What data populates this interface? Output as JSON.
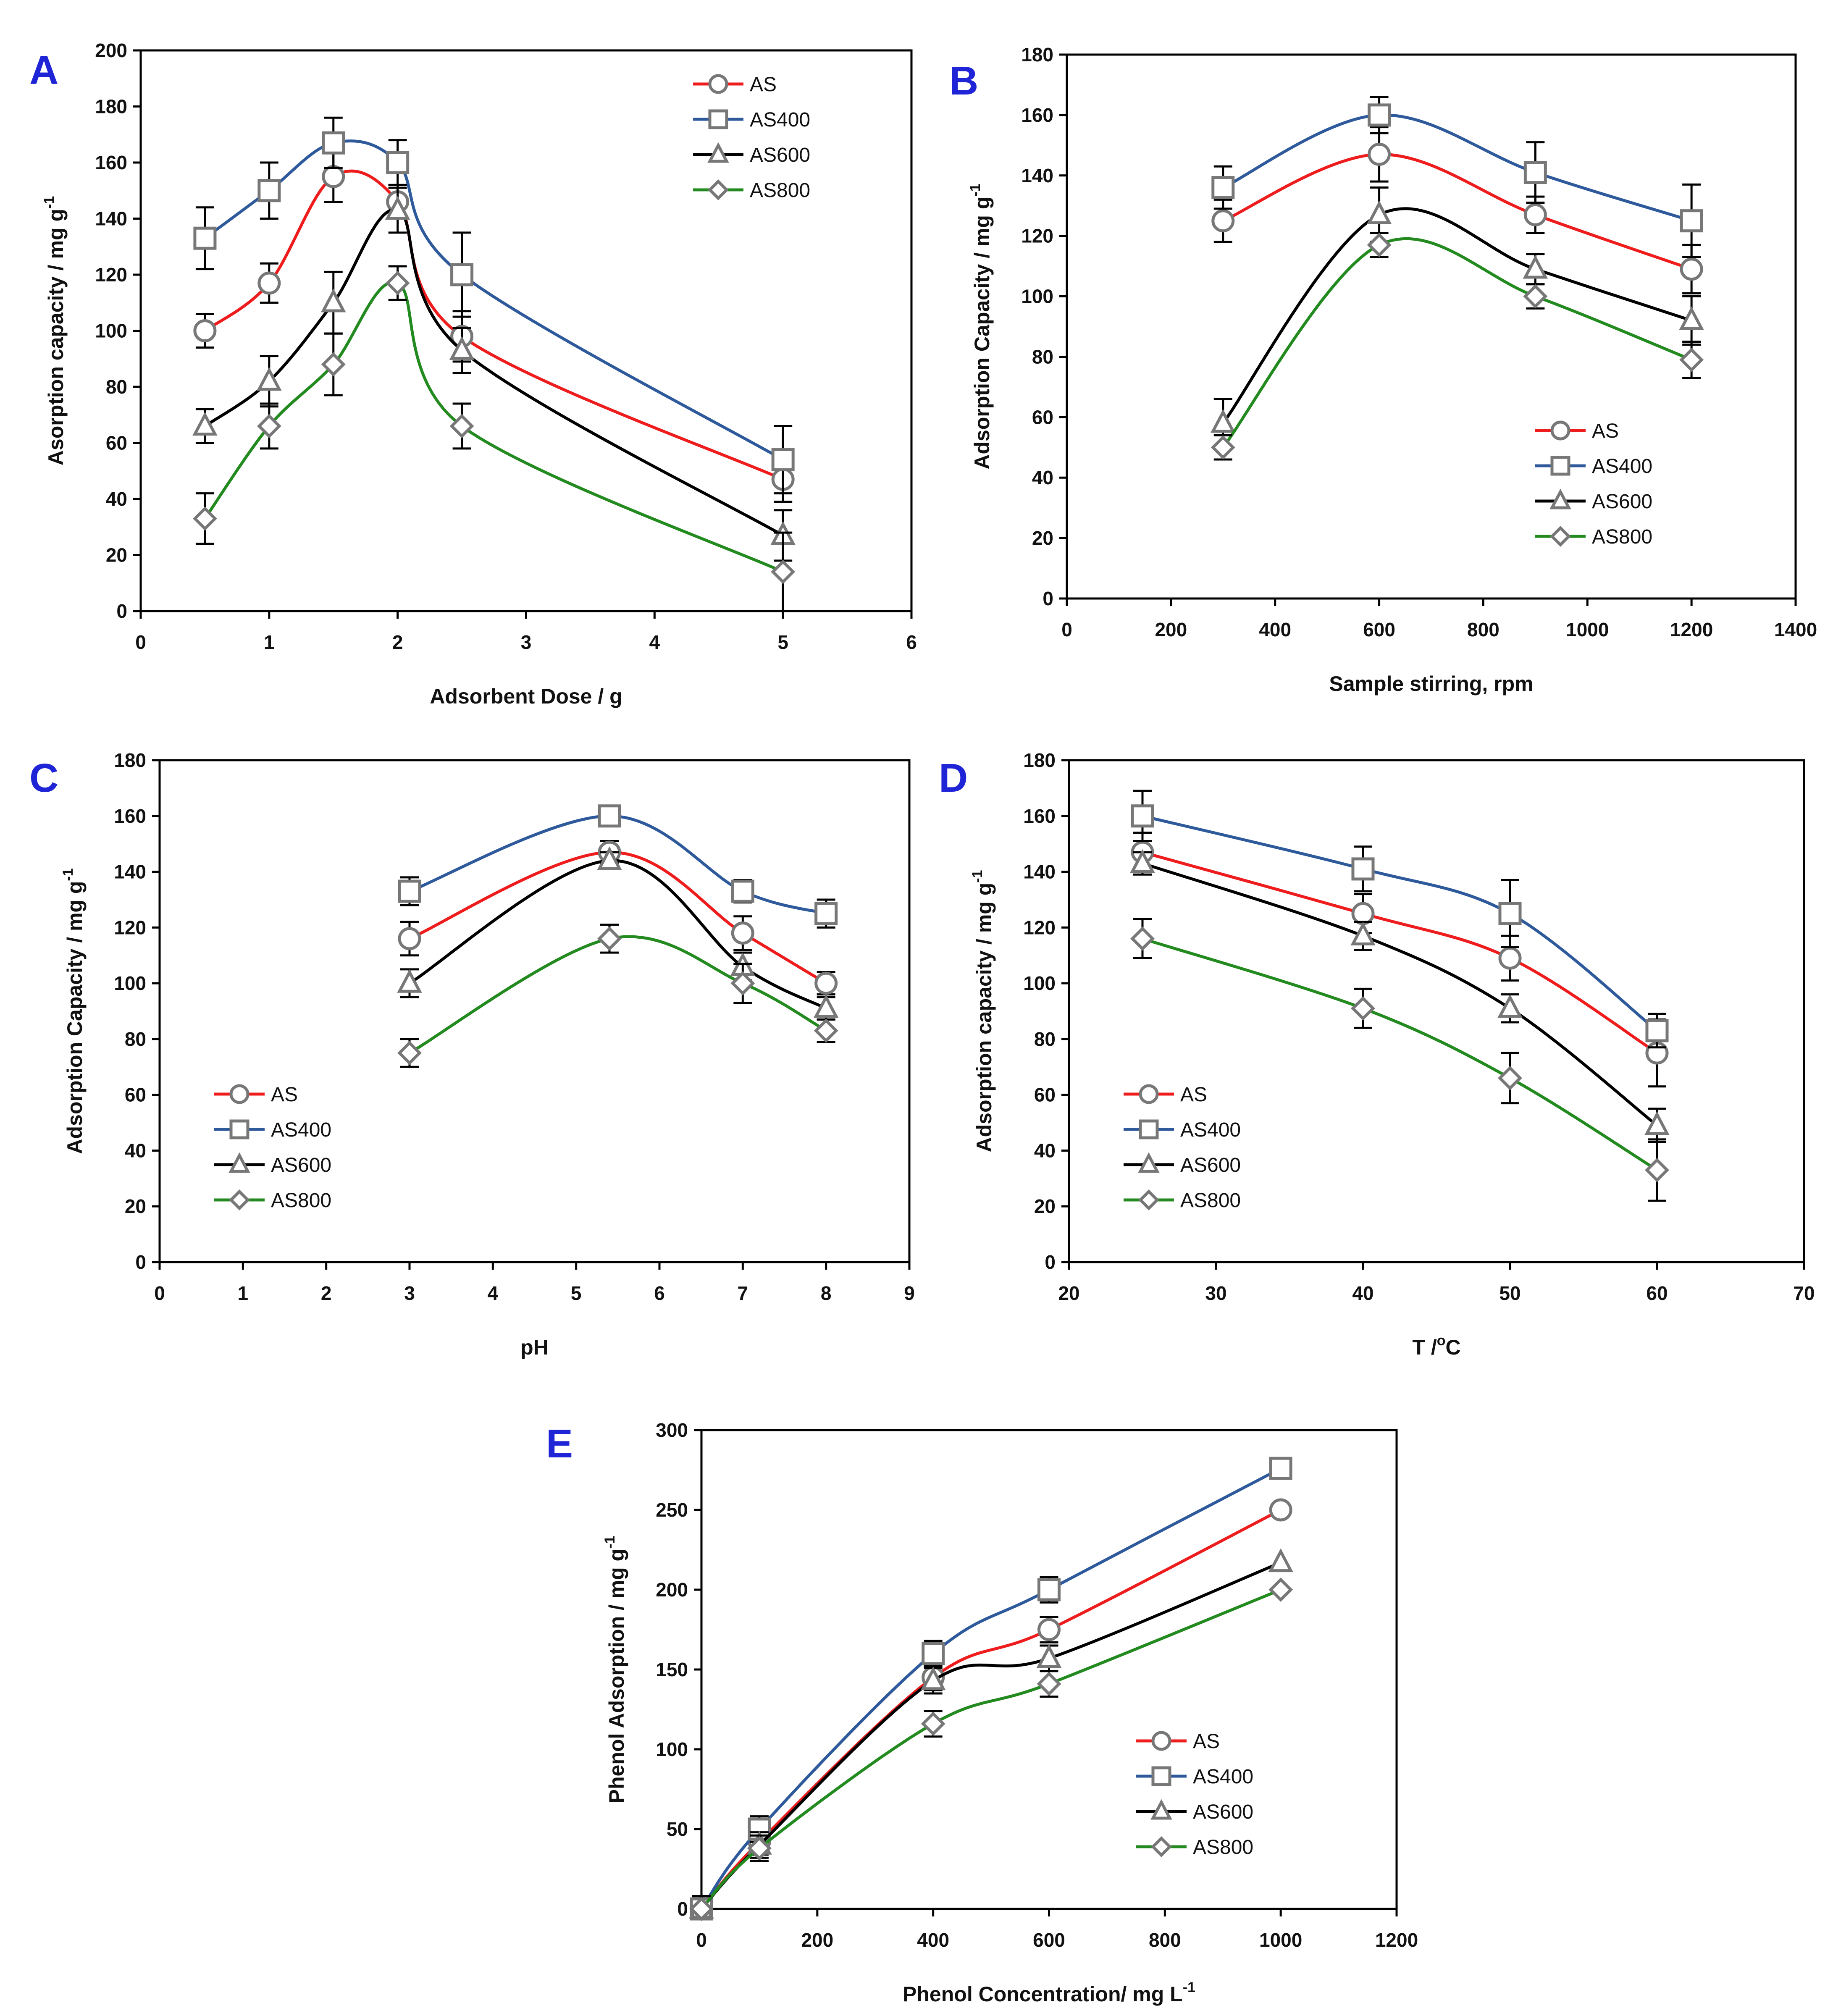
{
  "colors": {
    "AS": "#ee1c1c",
    "AS400": "#2e5a9c",
    "AS600": "#000000",
    "AS800": "#228a1e",
    "panel_letter": "#1f25d6",
    "marker_stroke": "#777777"
  },
  "chart_data": [
    {
      "panel": "A",
      "type": "line",
      "xlabel": "Adsorbent Dose / g",
      "ylabel": "Asorption capacity / mg g",
      "ylabel_sup": "-1",
      "xlim": [
        0,
        6
      ],
      "xticks": [
        0,
        1,
        2,
        3,
        4,
        5,
        6
      ],
      "ylim": [
        0,
        200
      ],
      "yticks": [
        0,
        20,
        40,
        60,
        80,
        100,
        120,
        140,
        160,
        180,
        200
      ],
      "legend_position": "top-right",
      "x": [
        0.5,
        1,
        1.5,
        2,
        2.5,
        5
      ],
      "series": [
        {
          "name": "AS",
          "marker": "circle",
          "values": [
            100,
            117,
            155,
            146,
            98,
            47
          ],
          "errors": [
            6,
            7,
            9,
            6,
            9,
            8
          ]
        },
        {
          "name": "AS400",
          "marker": "square",
          "values": [
            133,
            150,
            167,
            160,
            120,
            54
          ],
          "errors": [
            11,
            10,
            9,
            8,
            15,
            12
          ]
        },
        {
          "name": "AS600",
          "marker": "triangle",
          "values": [
            66,
            82,
            110,
            143,
            93,
            27
          ],
          "errors": [
            6,
            9,
            11,
            8,
            8,
            9
          ]
        },
        {
          "name": "AS800",
          "marker": "diamond",
          "values": [
            33,
            66,
            88,
            117,
            66,
            14
          ],
          "errors": [
            9,
            8,
            11,
            6,
            8,
            14
          ]
        }
      ]
    },
    {
      "panel": "B",
      "type": "line",
      "xlabel": "Sample stirring, rpm",
      "ylabel": "Adsorption Capacity / mg g",
      "ylabel_sup": "-1",
      "xlim": [
        0,
        1400
      ],
      "xticks": [
        0,
        200,
        400,
        600,
        800,
        1000,
        1200,
        1400
      ],
      "ylim": [
        0,
        180
      ],
      "yticks": [
        0,
        20,
        40,
        60,
        80,
        100,
        120,
        140,
        160,
        180
      ],
      "legend_position": "bottom-right",
      "x": [
        300,
        600,
        900,
        1200
      ],
      "series": [
        {
          "name": "AS",
          "marker": "circle",
          "values": [
            125,
            147,
            127,
            109
          ],
          "errors": [
            7,
            9,
            6,
            8
          ]
        },
        {
          "name": "AS400",
          "marker": "square",
          "values": [
            136,
            160,
            141,
            125
          ],
          "errors": [
            7,
            6,
            10,
            12
          ]
        },
        {
          "name": "AS600",
          "marker": "triangle",
          "values": [
            58,
            127,
            109,
            92
          ],
          "errors": [
            8,
            9,
            5,
            8
          ]
        },
        {
          "name": "AS800",
          "marker": "diamond",
          "values": [
            50,
            117,
            100,
            79
          ],
          "errors": [
            4,
            4,
            4,
            6
          ]
        }
      ]
    },
    {
      "panel": "C",
      "type": "line",
      "xlabel": "pH",
      "ylabel": "Adsorption Capacity / mg g",
      "ylabel_sup": "-1",
      "xlim": [
        0,
        9
      ],
      "xticks": [
        0,
        1,
        2,
        3,
        4,
        5,
        6,
        7,
        8,
        9
      ],
      "ylim": [
        0,
        180
      ],
      "yticks": [
        0,
        20,
        40,
        60,
        80,
        100,
        120,
        140,
        160,
        180
      ],
      "legend_position": "bottom-left",
      "x": [
        3,
        5.4,
        7,
        8
      ],
      "series": [
        {
          "name": "AS",
          "marker": "circle",
          "values": [
            116,
            147,
            118,
            100
          ],
          "errors": [
            6,
            4,
            6,
            4
          ]
        },
        {
          "name": "AS400",
          "marker": "square",
          "values": [
            133,
            160,
            133,
            125
          ],
          "errors": [
            5,
            3,
            4,
            5
          ]
        },
        {
          "name": "AS600",
          "marker": "triangle",
          "values": [
            100,
            144,
            106,
            91
          ],
          "errors": [
            5,
            3,
            5,
            4
          ]
        },
        {
          "name": "AS800",
          "marker": "diamond",
          "values": [
            75,
            116,
            100,
            83
          ],
          "errors": [
            5,
            5,
            7,
            4
          ]
        }
      ]
    },
    {
      "panel": "D",
      "type": "line",
      "xlabel": "T /",
      "xlabel_sup": "o",
      "xlabel_suffix": "C",
      "ylabel": "Adsorption capacity / mg g",
      "ylabel_sup": "-1",
      "xlim": [
        20,
        70
      ],
      "xticks": [
        20,
        30,
        40,
        50,
        60,
        70
      ],
      "ylim": [
        0,
        180
      ],
      "yticks": [
        0,
        20,
        40,
        60,
        80,
        100,
        120,
        140,
        160,
        180
      ],
      "legend_position": "bottom-left",
      "x": [
        25,
        40,
        50,
        60
      ],
      "series": [
        {
          "name": "AS",
          "marker": "circle",
          "values": [
            147,
            125,
            109,
            75
          ],
          "errors": [
            7,
            7,
            8,
            12
          ]
        },
        {
          "name": "AS400",
          "marker": "square",
          "values": [
            160,
            141,
            125,
            83
          ],
          "errors": [
            9,
            8,
            12,
            6
          ]
        },
        {
          "name": "AS600",
          "marker": "triangle",
          "values": [
            143,
            117,
            91,
            49
          ],
          "errors": [
            4,
            5,
            5,
            6
          ]
        },
        {
          "name": "AS800",
          "marker": "diamond",
          "values": [
            116,
            91,
            66,
            33
          ],
          "errors": [
            7,
            7,
            9,
            11
          ]
        }
      ]
    },
    {
      "panel": "E",
      "type": "line",
      "xlabel": "Phenol Concentration/ mg L",
      "xlabel_sup": "-1",
      "ylabel": "Phenol Adsorption / mg g",
      "ylabel_sup": "-1",
      "xlim": [
        0,
        1200
      ],
      "xticks": [
        0,
        200,
        400,
        600,
        800,
        1000,
        1200
      ],
      "ylim": [
        0,
        300
      ],
      "yticks": [
        0,
        50,
        100,
        150,
        200,
        250,
        300
      ],
      "legend_position": "bottom-right",
      "x": [
        0,
        100,
        400,
        600,
        1000
      ],
      "series": [
        {
          "name": "AS",
          "marker": "circle",
          "values": [
            0,
            42,
            145,
            175,
            250
          ],
          "errors": [
            8,
            8,
            8,
            8,
            0
          ]
        },
        {
          "name": "AS400",
          "marker": "square",
          "values": [
            0,
            50,
            160,
            200,
            276
          ],
          "errors": [
            8,
            8,
            8,
            8,
            0
          ]
        },
        {
          "name": "AS600",
          "marker": "triangle",
          "values": [
            0,
            40,
            143,
            157,
            217
          ],
          "errors": [
            8,
            8,
            8,
            8,
            0
          ]
        },
        {
          "name": "AS800",
          "marker": "diamond",
          "values": [
            0,
            38,
            116,
            141,
            200
          ],
          "errors": [
            8,
            8,
            8,
            8,
            0
          ]
        }
      ]
    }
  ]
}
